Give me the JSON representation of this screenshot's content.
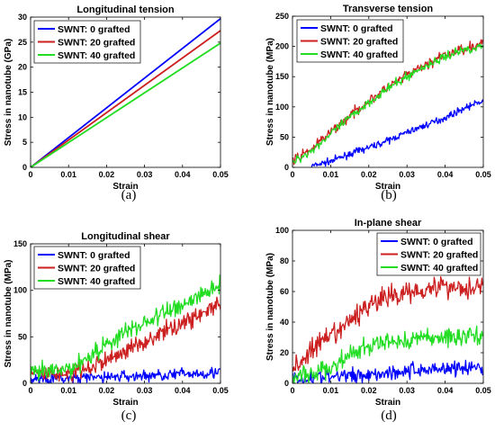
{
  "chart_data": [
    {
      "type": "line",
      "title": "Longitudinal tension",
      "xlabel": "Strain",
      "ylabel": "Stress in nanotube (GPa)",
      "panel_label": "(a)",
      "xlim": [
        0,
        0.05
      ],
      "ylim": [
        0,
        30
      ],
      "xticks": [
        0,
        0.01,
        0.02,
        0.03,
        0.04,
        0.05
      ],
      "yticks": [
        0,
        5,
        10,
        15,
        20,
        25,
        30
      ],
      "legend_position": "top-left",
      "grid": false,
      "series": [
        {
          "name": "SWNT: 0 grafted",
          "color": "#0000ff",
          "x": [
            0,
            0.05
          ],
          "y": [
            0,
            29.7
          ]
        },
        {
          "name": "SWNT: 20 grafted",
          "color": "#cc1f1f",
          "x": [
            0,
            0.05
          ],
          "y": [
            0,
            27.3
          ]
        },
        {
          "name": "SWNT: 40 grafted",
          "color": "#22dd22",
          "x": [
            0,
            0.05
          ],
          "y": [
            0,
            24.8
          ]
        }
      ]
    },
    {
      "type": "line",
      "title": "Transverse tension",
      "xlabel": "Strain",
      "ylabel": "Stress in nanotube (MPa)",
      "panel_label": "(b)",
      "xlim": [
        0,
        0.05
      ],
      "ylim": [
        0,
        250
      ],
      "xticks": [
        0,
        0.01,
        0.02,
        0.03,
        0.04,
        0.05
      ],
      "yticks": [
        0,
        50,
        100,
        150,
        200,
        250
      ],
      "legend_position": "top-left",
      "grid": false,
      "series": [
        {
          "name": "SWNT: 0 grafted",
          "color": "#0000ff",
          "x": [
            0.005,
            0.01,
            0.015,
            0.02,
            0.025,
            0.03,
            0.035,
            0.04,
            0.045,
            0.05
          ],
          "y": [
            2,
            10,
            22,
            33,
            44,
            58,
            70,
            82,
            98,
            110
          ]
        },
        {
          "name": "SWNT: 20 grafted",
          "color": "#cc1f1f",
          "x": [
            0,
            0.005,
            0.01,
            0.015,
            0.02,
            0.025,
            0.03,
            0.035,
            0.04,
            0.045,
            0.05
          ],
          "y": [
            10,
            30,
            58,
            85,
            110,
            132,
            152,
            170,
            185,
            197,
            205
          ]
        },
        {
          "name": "SWNT: 40 grafted",
          "color": "#22dd22",
          "x": [
            0,
            0.005,
            0.01,
            0.015,
            0.02,
            0.025,
            0.03,
            0.035,
            0.04,
            0.045,
            0.05
          ],
          "y": [
            8,
            28,
            55,
            82,
            108,
            130,
            150,
            168,
            183,
            195,
            200
          ]
        }
      ]
    },
    {
      "type": "line",
      "title": "Longitudinal shear",
      "xlabel": "Strain",
      "ylabel": "Stress in nanotube (MPa)",
      "panel_label": "(c)",
      "xlim": [
        0,
        0.05
      ],
      "ylim": [
        0,
        150
      ],
      "xticks": [
        0,
        0.01,
        0.02,
        0.03,
        0.04,
        0.05
      ],
      "yticks": [
        0,
        50,
        100,
        150
      ],
      "legend_position": "top-left",
      "grid": false,
      "series": [
        {
          "name": "SWNT: 0 grafted",
          "color": "#0000ff",
          "x": [
            0,
            0.01,
            0.02,
            0.03,
            0.04,
            0.05
          ],
          "y": [
            5,
            5,
            7,
            8,
            10,
            12
          ]
        },
        {
          "name": "SWNT: 20 grafted",
          "color": "#cc1f1f",
          "x": [
            0,
            0.01,
            0.015,
            0.02,
            0.025,
            0.03,
            0.035,
            0.04,
            0.045,
            0.05
          ],
          "y": [
            10,
            10,
            15,
            25,
            35,
            45,
            55,
            65,
            75,
            85
          ]
        },
        {
          "name": "SWNT: 40 grafted",
          "color": "#22dd22",
          "x": [
            0,
            0.01,
            0.015,
            0.02,
            0.025,
            0.03,
            0.035,
            0.04,
            0.045,
            0.05
          ],
          "y": [
            10,
            15,
            28,
            42,
            55,
            65,
            75,
            85,
            95,
            108
          ]
        }
      ]
    },
    {
      "type": "line",
      "title": "In-plane shear",
      "xlabel": "Strain",
      "ylabel": "Stress in nanotube (MPa)",
      "panel_label": "(d)",
      "xlim": [
        0,
        0.05
      ],
      "ylim": [
        0,
        100
      ],
      "xticks": [
        0,
        0.01,
        0.02,
        0.03,
        0.04,
        0.05
      ],
      "yticks": [
        0,
        20,
        40,
        60,
        80,
        100
      ],
      "legend_position": "top-right",
      "grid": false,
      "series": [
        {
          "name": "SWNT: 0 grafted",
          "color": "#0000ff",
          "x": [
            0,
            0.01,
            0.02,
            0.03,
            0.04,
            0.05
          ],
          "y": [
            3,
            4,
            6,
            8,
            10,
            10
          ]
        },
        {
          "name": "SWNT: 20 grafted",
          "color": "#cc1f1f",
          "x": [
            0,
            0.005,
            0.01,
            0.015,
            0.02,
            0.025,
            0.03,
            0.035,
            0.04,
            0.045,
            0.05
          ],
          "y": [
            8,
            22,
            30,
            40,
            52,
            56,
            60,
            62,
            64,
            62,
            65
          ]
        },
        {
          "name": "SWNT: 40 grafted",
          "color": "#22dd22",
          "x": [
            0,
            0.005,
            0.01,
            0.015,
            0.02,
            0.025,
            0.03,
            0.035,
            0.04,
            0.045,
            0.05
          ],
          "y": [
            4,
            6,
            10,
            18,
            24,
            27,
            28,
            30,
            30,
            31,
            32
          ]
        }
      ]
    }
  ]
}
